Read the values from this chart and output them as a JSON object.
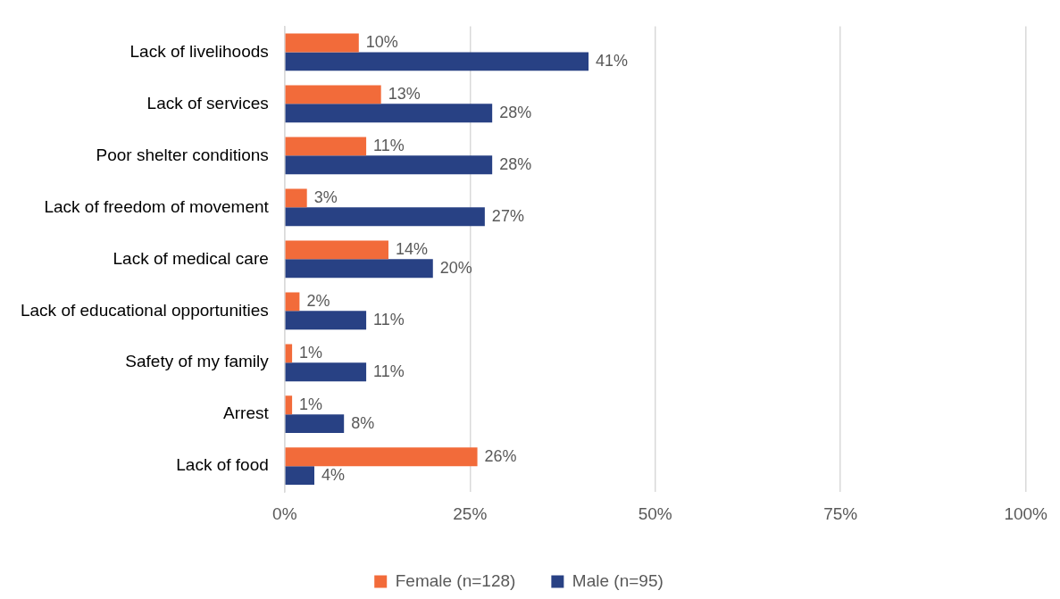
{
  "chart_data": {
    "type": "bar",
    "orientation": "horizontal",
    "categories": [
      "Lack of livelihoods",
      "Lack of services",
      "Poor shelter conditions",
      "Lack of freedom of movement",
      "Lack of medical care",
      "Lack of educational opportunities",
      "Safety of my family",
      "Arrest",
      "Lack of food"
    ],
    "series": [
      {
        "name": "Female (n=128)",
        "color": "#f26b3a",
        "values": [
          10,
          13,
          11,
          3,
          14,
          2,
          1,
          1,
          26
        ],
        "value_labels": [
          "10%",
          "13%",
          "11%",
          "3%",
          "14%",
          "2%",
          "1%",
          "1%",
          "26%"
        ]
      },
      {
        "name": "Male (n=95)",
        "color": "#284184",
        "values": [
          41,
          28,
          28,
          27,
          20,
          11,
          11,
          8,
          4
        ],
        "value_labels": [
          "41%",
          "28%",
          "28%",
          "27%",
          "20%",
          "11%",
          "11%",
          "8%",
          "4%"
        ]
      }
    ],
    "xlim": [
      0,
      100
    ],
    "xticks": [
      {
        "value": 0,
        "label": "0%"
      },
      {
        "value": 25,
        "label": "25%"
      },
      {
        "value": 50,
        "label": "50%"
      },
      {
        "value": 75,
        "label": "75%"
      },
      {
        "value": 100,
        "label": "100%"
      }
    ],
    "grid": "x",
    "legend": "bottom"
  }
}
